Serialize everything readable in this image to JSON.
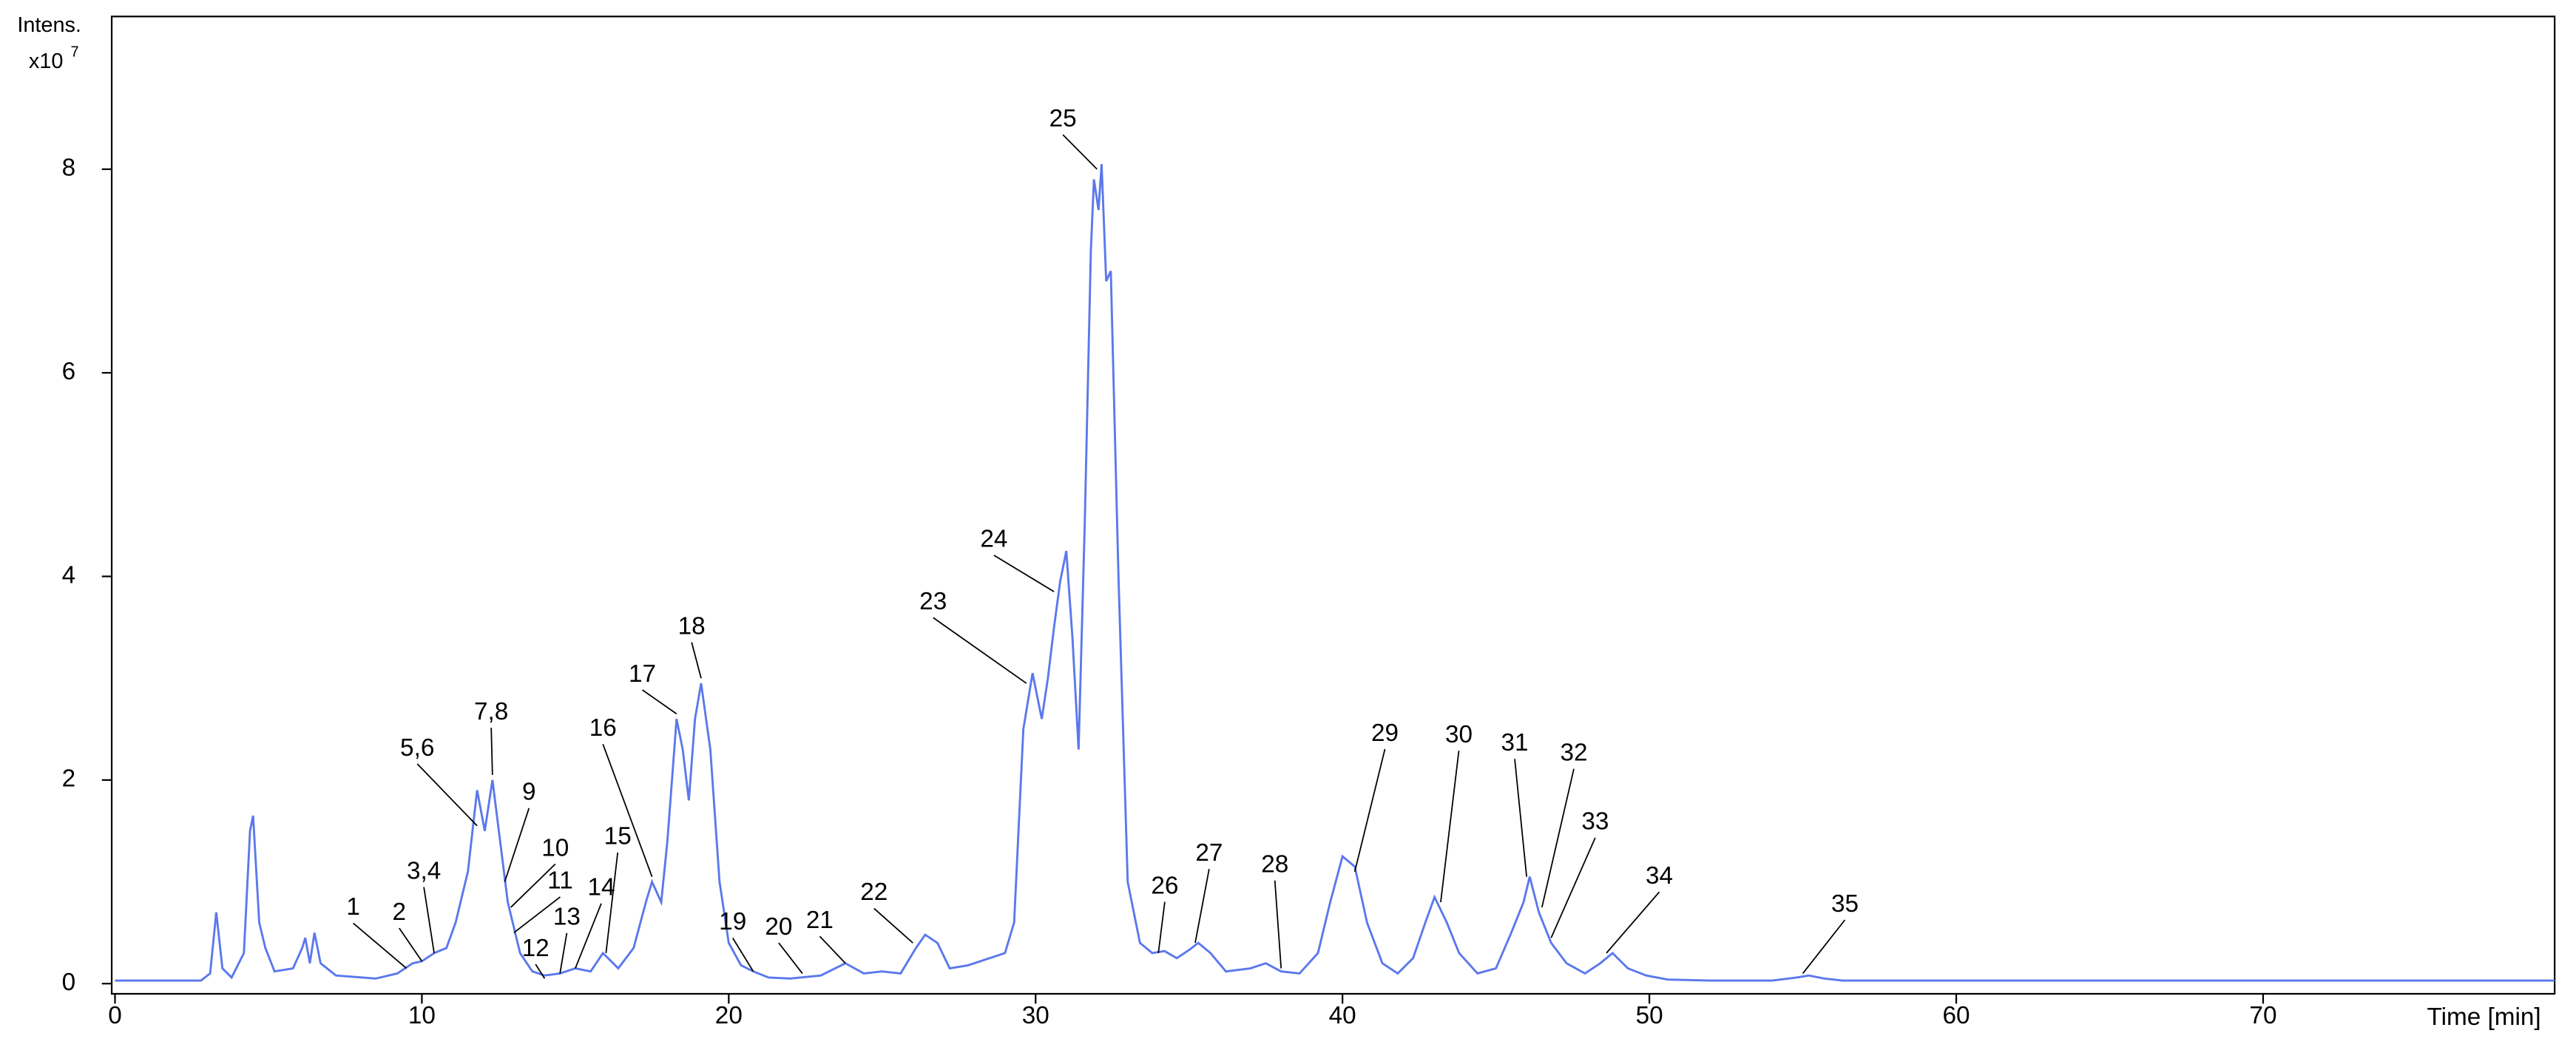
{
  "chart_data": {
    "type": "line",
    "y_axis_label": "Intens.",
    "y_axis_multiplier": "x10",
    "y_axis_multiplier_exponent": "7",
    "x_axis_label": "Time [min]",
    "xlim": [
      0,
      79.5
    ],
    "ylim": [
      -0.1,
      9.5
    ],
    "xticks": [
      0,
      10,
      20,
      30,
      40,
      50,
      60,
      70
    ],
    "yticks": [
      0,
      2,
      4,
      6,
      8
    ],
    "series": [
      {
        "color": "#5b78ec",
        "x": [
          0,
          2.8,
          3.1,
          3.3,
          3.5,
          3.8,
          4.2,
          4.4,
          4.5,
          4.7,
          4.9,
          5.2,
          5.8,
          6.1,
          6.2,
          6.35,
          6.5,
          6.7,
          7.2,
          8.5,
          9.2,
          9.7,
          10.0,
          10.4,
          10.8,
          11.1,
          11.5,
          11.8,
          12.05,
          12.3,
          12.55,
          12.8,
          13.2,
          13.6,
          14.0,
          14.5,
          15.0,
          15.5,
          15.9,
          16.4,
          16.9,
          17.3,
          17.5,
          17.8,
          18.0,
          18.3,
          18.5,
          18.7,
          18.9,
          19.1,
          19.4,
          19.7,
          20.0,
          20.4,
          20.8,
          21.3,
          22.0,
          23.0,
          23.8,
          24.4,
          25.0,
          25.6,
          26.1,
          26.4,
          26.8,
          27.2,
          27.8,
          28.5,
          29.0,
          29.3,
          29.6,
          29.9,
          30.2,
          30.4,
          30.6,
          30.8,
          31.0,
          31.2,
          31.4,
          31.6,
          31.8,
          31.9,
          32.05,
          32.15,
          32.3,
          32.45,
          32.7,
          33.0,
          33.4,
          33.8,
          34.2,
          34.6,
          35.0,
          35.3,
          35.7,
          36.2,
          37.0,
          37.5,
          38.0,
          38.6,
          39.2,
          39.6,
          40.0,
          40.4,
          40.8,
          41.3,
          41.8,
          42.3,
          42.7,
          43.0,
          43.4,
          43.8,
          44.4,
          45.0,
          45.5,
          45.9,
          46.1,
          46.4,
          46.8,
          47.3,
          47.9,
          48.4,
          48.8,
          49.3,
          49.9,
          50.6,
          52.0,
          54.0,
          54.8,
          55.2,
          55.7,
          56.3,
          60.0,
          70.0,
          79.5
        ],
        "values": [
          0.03,
          0.03,
          0.1,
          0.7,
          0.15,
          0.06,
          0.3,
          1.5,
          1.65,
          0.6,
          0.35,
          0.12,
          0.15,
          0.35,
          0.45,
          0.2,
          0.5,
          0.2,
          0.08,
          0.05,
          0.1,
          0.2,
          0.22,
          0.3,
          0.35,
          0.6,
          1.1,
          1.9,
          1.5,
          2.0,
          1.4,
          0.8,
          0.3,
          0.12,
          0.08,
          0.1,
          0.15,
          0.12,
          0.3,
          0.15,
          0.35,
          0.8,
          1.0,
          0.8,
          1.4,
          2.6,
          2.3,
          1.8,
          2.6,
          2.95,
          2.3,
          1.0,
          0.4,
          0.18,
          0.12,
          0.06,
          0.05,
          0.08,
          0.2,
          0.1,
          0.12,
          0.1,
          0.35,
          0.48,
          0.4,
          0.15,
          0.18,
          0.25,
          0.3,
          0.6,
          2.5,
          3.05,
          2.6,
          3.0,
          3.5,
          3.95,
          4.25,
          3.4,
          2.3,
          4.5,
          7.2,
          7.9,
          7.6,
          8.05,
          6.9,
          7.0,
          4.0,
          1.0,
          0.4,
          0.3,
          0.32,
          0.25,
          0.33,
          0.4,
          0.3,
          0.12,
          0.15,
          0.2,
          0.12,
          0.1,
          0.3,
          0.8,
          1.25,
          1.15,
          0.6,
          0.2,
          0.1,
          0.25,
          0.6,
          0.85,
          0.6,
          0.3,
          0.1,
          0.15,
          0.5,
          0.8,
          1.05,
          0.7,
          0.4,
          0.2,
          0.1,
          0.2,
          0.3,
          0.15,
          0.08,
          0.04,
          0.03,
          0.03,
          0.06,
          0.08,
          0.05,
          0.03,
          0.03,
          0.03,
          0.03
        ]
      }
    ],
    "annotations": [
      {
        "label": "1",
        "x": 9.5,
        "y": 0.15
      },
      {
        "label": "2",
        "x": 10.0,
        "y": 0.22
      },
      {
        "label": "3,4",
        "x": 10.4,
        "y": 0.3
      },
      {
        "label": "5,6",
        "x": 11.8,
        "y": 1.55
      },
      {
        "label": "7,8",
        "x": 12.3,
        "y": 2.05
      },
      {
        "label": "9",
        "x": 12.7,
        "y": 1.0
      },
      {
        "label": "10",
        "x": 12.9,
        "y": 0.75
      },
      {
        "label": "11",
        "x": 13.0,
        "y": 0.5
      },
      {
        "label": "12",
        "x": 14.0,
        "y": 0.05
      },
      {
        "label": "13",
        "x": 14.5,
        "y": 0.1
      },
      {
        "label": "14",
        "x": 15.0,
        "y": 0.15
      },
      {
        "label": "15",
        "x": 16.0,
        "y": 0.3
      },
      {
        "label": "16",
        "x": 17.5,
        "y": 1.05
      },
      {
        "label": "17",
        "x": 18.3,
        "y": 2.65
      },
      {
        "label": "18",
        "x": 19.1,
        "y": 3.0
      },
      {
        "label": "19",
        "x": 20.8,
        "y": 0.12
      },
      {
        "label": "20",
        "x": 22.4,
        "y": 0.1
      },
      {
        "label": "21",
        "x": 23.8,
        "y": 0.2
      },
      {
        "label": "22",
        "x": 26.0,
        "y": 0.4
      },
      {
        "label": "23",
        "x": 29.7,
        "y": 2.95
      },
      {
        "label": "24",
        "x": 30.6,
        "y": 3.85
      },
      {
        "label": "25",
        "x": 32.0,
        "y": 8.0
      },
      {
        "label": "26",
        "x": 34.0,
        "y": 0.3
      },
      {
        "label": "27",
        "x": 35.2,
        "y": 0.4
      },
      {
        "label": "28",
        "x": 38.0,
        "y": 0.15
      },
      {
        "label": "29",
        "x": 40.4,
        "y": 1.1
      },
      {
        "label": "30",
        "x": 43.2,
        "y": 0.8
      },
      {
        "label": "31",
        "x": 46.0,
        "y": 1.05
      },
      {
        "label": "32",
        "x": 46.5,
        "y": 0.75
      },
      {
        "label": "33",
        "x": 46.8,
        "y": 0.45
      },
      {
        "label": "34",
        "x": 48.6,
        "y": 0.3
      },
      {
        "label": "35",
        "x": 55.0,
        "y": 0.1
      }
    ]
  }
}
